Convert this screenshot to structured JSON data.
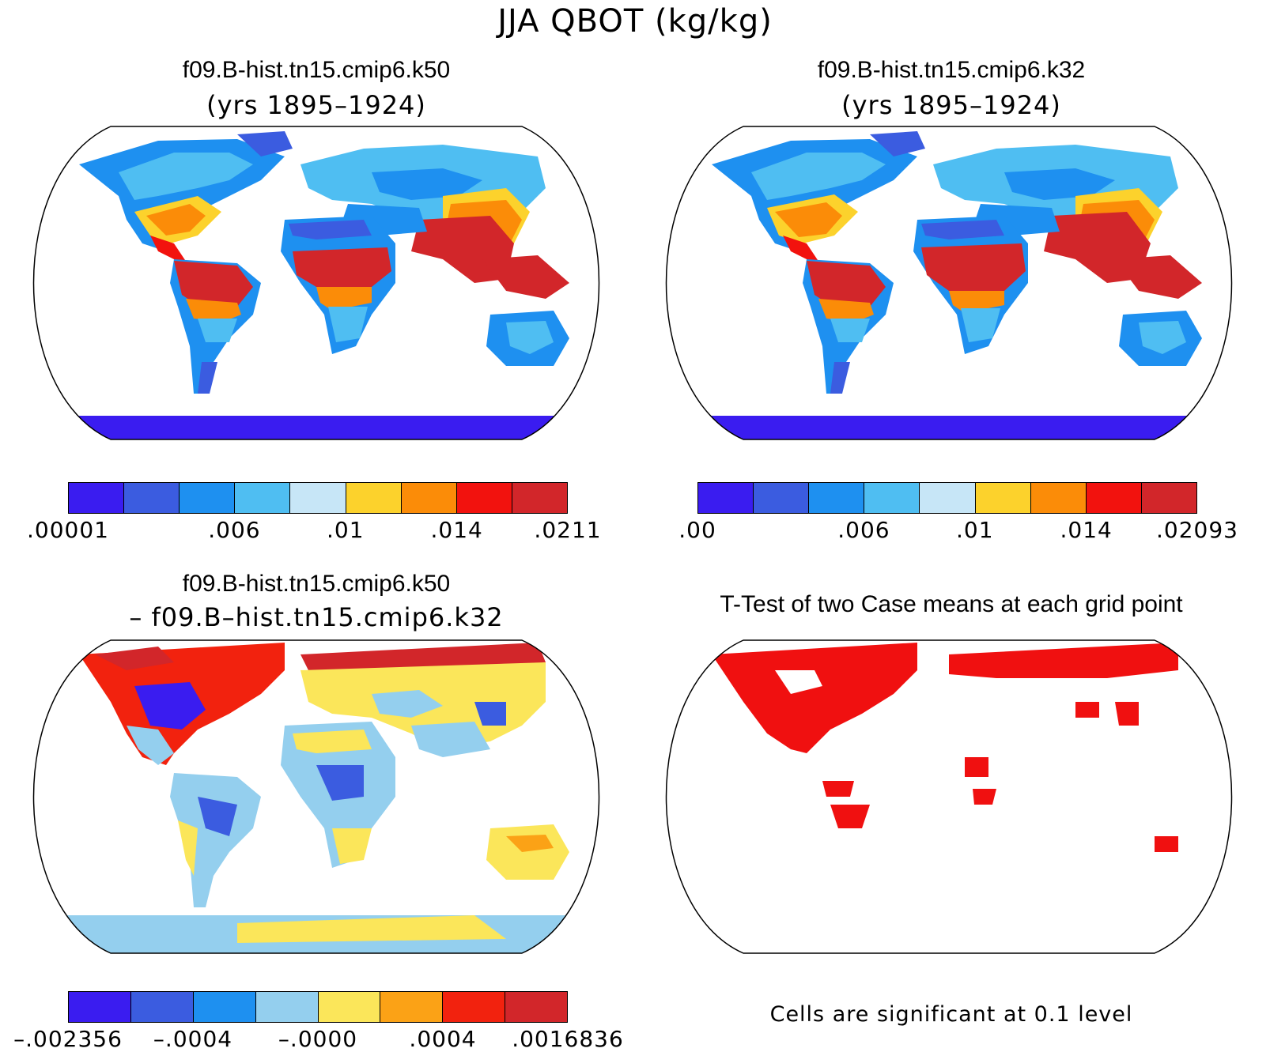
{
  "title": "JJA QBOT (kg/kg)",
  "panels": [
    {
      "id": "k50",
      "title": "f09.B-hist.tn15.cmip6.k50",
      "subtitle": "(yrs 1895–1924)",
      "legend_ticks": [
        ".00001",
        ".006",
        ".01",
        ".014",
        ".0211"
      ],
      "legend_colors": [
        "#3a1cf0",
        "#3b5ce0",
        "#1e90f0",
        "#4fbef2",
        "#c7e6f7",
        "#fcd22c",
        "#fb8c08",
        "#f2120e",
        "#d2262a"
      ]
    },
    {
      "id": "k32",
      "title": "f09.B-hist.tn15.cmip6.k32",
      "subtitle": "(yrs 1895–1924)",
      "legend_ticks": [
        ".00",
        ".006",
        ".01",
        ".014",
        ".02093"
      ],
      "legend_colors": [
        "#3a1cf0",
        "#3b5ce0",
        "#1e90f0",
        "#4fbef2",
        "#c7e6f7",
        "#fcd22c",
        "#fb8c08",
        "#f2120e",
        "#d2262a"
      ]
    },
    {
      "id": "diff",
      "title": "f09.B-hist.tn15.cmip6.k50",
      "subtitle": "– f09.B–hist.tn15.cmip6.k32",
      "legend_ticks": [
        "–.002356",
        "–.0004",
        "–.0000",
        ".0004",
        ".0016836"
      ],
      "legend_colors": [
        "#3a1cf0",
        "#3b5ce0",
        "#1e90f0",
        "#94cfee",
        "#fbe65a",
        "#fba216",
        "#f2220e",
        "#d2262a"
      ]
    },
    {
      "id": "ttest",
      "title": "T-Test of two Case means at each grid point",
      "note": "Cells are significant at 0.1 level",
      "sig_color": "#f01010"
    }
  ]
}
